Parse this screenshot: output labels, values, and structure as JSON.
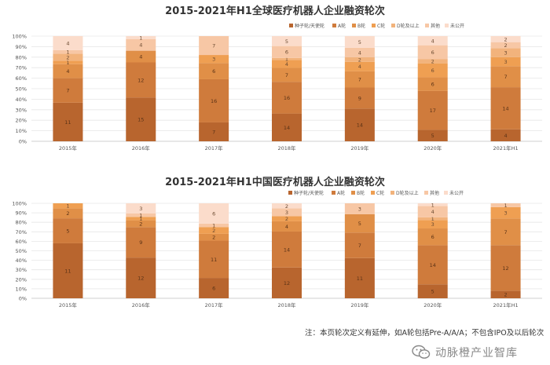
{
  "chart_data": [
    {
      "type": "bar",
      "stacked": "percent",
      "title": "2015-2021年H1全球医疗机器人企业融资轮次",
      "categories": [
        "2015年",
        "2016年",
        "2017年",
        "2018年",
        "2019年",
        "2020年",
        "2021年H1"
      ],
      "series": [
        {
          "name": "种子轮/天使轮",
          "values": [
            11,
            15,
            7,
            14,
            14,
            5,
            4
          ]
        },
        {
          "name": "A轮",
          "values": [
            7,
            12,
            16,
            16,
            9,
            17,
            14
          ]
        },
        {
          "name": "B轮",
          "values": [
            4,
            4,
            6,
            7,
            7,
            6,
            7
          ]
        },
        {
          "name": "C轮",
          "values": [
            1,
            0,
            3,
            4,
            4,
            6,
            3
          ]
        },
        {
          "name": "D轮及以上",
          "values": [
            2,
            0,
            0,
            1,
            2,
            2,
            3
          ]
        },
        {
          "name": "其他",
          "values": [
            1,
            4,
            7,
            6,
            4,
            6,
            2
          ]
        },
        {
          "name": "未公开",
          "values": [
            4,
            1,
            0,
            5,
            5,
            4,
            2
          ]
        }
      ],
      "yticks": [
        "0%",
        "10%",
        "20%",
        "30%",
        "40%",
        "50%",
        "60%",
        "70%",
        "80%",
        "90%",
        "100%"
      ],
      "ylim": [
        0,
        100
      ],
      "legend_position": "top-right"
    },
    {
      "type": "bar",
      "stacked": "percent",
      "title": "2015-2021年H1中国医疗机器人企业融资轮次",
      "categories": [
        "2015年",
        "2016年",
        "2017年",
        "2018年",
        "2019年",
        "2020年",
        "2021年H1"
      ],
      "series": [
        {
          "name": "种子轮/天使轮",
          "values": [
            11,
            12,
            6,
            12,
            11,
            5,
            2
          ]
        },
        {
          "name": "A轮",
          "values": [
            5,
            9,
            11,
            14,
            7,
            14,
            12
          ]
        },
        {
          "name": "B轮",
          "values": [
            2,
            2,
            2,
            4,
            5,
            6,
            7
          ]
        },
        {
          "name": "C轮",
          "values": [
            1,
            1,
            2,
            2,
            0,
            3,
            3
          ]
        },
        {
          "name": "D轮及以上",
          "values": [
            0,
            0,
            0,
            0,
            0,
            1,
            0
          ]
        },
        {
          "name": "其他",
          "values": [
            0,
            1,
            1,
            3,
            3,
            4,
            1
          ]
        },
        {
          "name": "未公开",
          "values": [
            0,
            3,
            6,
            2,
            0,
            1,
            0
          ]
        }
      ],
      "yticks": [
        "0%",
        "10%",
        "20%",
        "30%",
        "40%",
        "50%",
        "60%",
        "70%",
        "80%",
        "90%",
        "100%"
      ],
      "ylim": [
        0,
        100
      ],
      "legend_position": "top-right"
    }
  ],
  "colors": [
    "#b8652e",
    "#cf7b3c",
    "#e08f47",
    "#ef9f52",
    "#f2b37c",
    "#f7c7a5",
    "#fbdccb"
  ],
  "footnote": "注：本页轮次定义有延伸，如A轮包括Pre-A/A/A；不包含IPO及以后轮次",
  "brand": {
    "name": "动脉橙产业智库",
    "logo_icon": "wechat-icon"
  }
}
